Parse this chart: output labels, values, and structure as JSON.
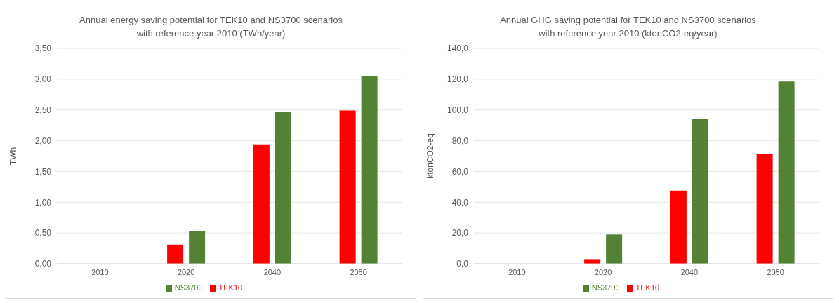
{
  "chart_data": [
    {
      "type": "bar",
      "title": "Annual energy saving potential for TEK10 and NS3700 scenarios\nwith reference year 2010 (TWh/year)",
      "ylabel": "TWh",
      "categories": [
        "2010",
        "2020",
        "2040",
        "2050"
      ],
      "series": [
        {
          "name": "TEK10",
          "color": "#ff0000",
          "values": [
            0,
            0.31,
            1.93,
            2.49
          ]
        },
        {
          "name": "NS3700",
          "color": "#548235",
          "values": [
            0,
            0.53,
            2.47,
            3.05
          ]
        }
      ],
      "ylim": [
        0,
        3.5
      ],
      "yticks": [
        {
          "value": 0,
          "label": "0,00"
        },
        {
          "value": 0.5,
          "label": "0,50"
        },
        {
          "value": 1,
          "label": "1,00"
        },
        {
          "value": 1.5,
          "label": "1,50"
        },
        {
          "value": 2,
          "label": "2,00"
        },
        {
          "value": 2.5,
          "label": "2,50"
        },
        {
          "value": 3,
          "label": "3,00"
        },
        {
          "value": 3.5,
          "label": "3,50"
        }
      ],
      "grid": "y",
      "legend": "bottom"
    },
    {
      "type": "bar",
      "title": "Annual GHG saving potential for TEK10 and NS3700 scenarios\nwith reference year 2010 (ktonCO2-eq/year)",
      "ylabel": "ktonCO2-eq",
      "categories": [
        "2010",
        "2020",
        "2040",
        "2050"
      ],
      "series": [
        {
          "name": "TEK10",
          "color": "#ff0000",
          "values": [
            0,
            3,
            47.5,
            71.5
          ]
        },
        {
          "name": "NS3700",
          "color": "#548235",
          "values": [
            0,
            19,
            94,
            118.5
          ]
        }
      ],
      "ylim": [
        0,
        140
      ],
      "yticks": [
        {
          "value": 0,
          "label": "0,0"
        },
        {
          "value": 20,
          "label": "20,0"
        },
        {
          "value": 40,
          "label": "40,0"
        },
        {
          "value": 60,
          "label": "60,0"
        },
        {
          "value": 80,
          "label": "80,0"
        },
        {
          "value": 100,
          "label": "100,0"
        },
        {
          "value": 120,
          "label": "120,0"
        },
        {
          "value": 140,
          "label": "140,0"
        }
      ],
      "grid": "y",
      "legend": "bottom"
    }
  ]
}
